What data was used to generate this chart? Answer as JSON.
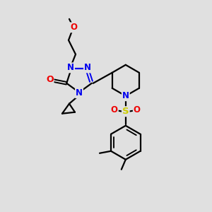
{
  "bg_color": "#e0e0e0",
  "atom_colors": {
    "N": "#0000ee",
    "O": "#ee0000",
    "S": "#cccc00",
    "C": "#000000"
  },
  "bond_color": "#000000",
  "bond_width": 1.6,
  "font_size_atom": 8.5
}
